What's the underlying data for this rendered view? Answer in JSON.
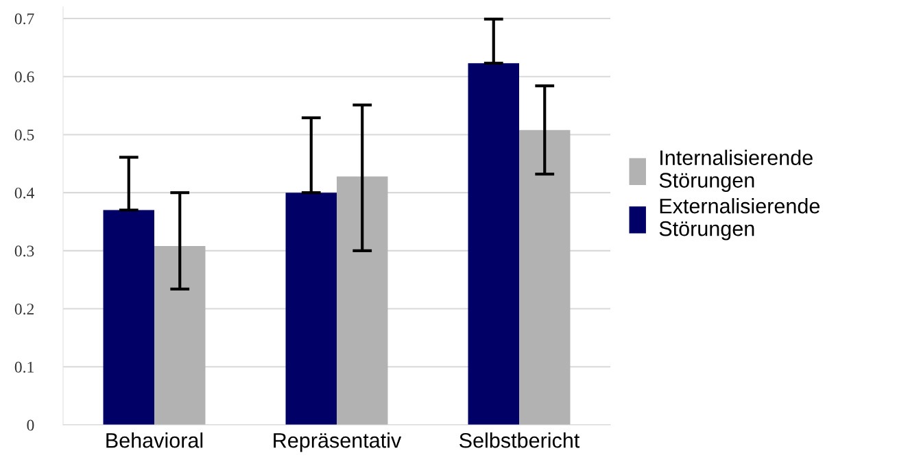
{
  "chart_data": {
    "type": "bar",
    "categories": [
      "Behavioral",
      "Repräsentativ",
      "Selbstbericht"
    ],
    "series": [
      {
        "name": "Externalisierende\nStörungen",
        "color": "#000066",
        "values": [
          0.37,
          0.4,
          0.623
        ],
        "errors": [
          [
            0.37,
            0.461
          ],
          [
            0.4,
            0.529
          ],
          [
            0.623,
            0.699
          ]
        ]
      },
      {
        "name": "Internalisierende\nStörungen",
        "color": "#b2b2b2",
        "values": [
          0.308,
          0.428,
          0.508
        ],
        "errors": [
          [
            0.234,
            0.4
          ],
          [
            0.3,
            0.551
          ],
          [
            0.432,
            0.584
          ]
        ]
      }
    ],
    "ylim": [
      0,
      0.72
    ],
    "yticks": [
      {
        "value": 0,
        "label": "0"
      },
      0.1,
      0.2,
      0.3,
      0.4,
      0.5,
      0.6,
      0.7
    ],
    "grid": "y",
    "legend": "right"
  }
}
